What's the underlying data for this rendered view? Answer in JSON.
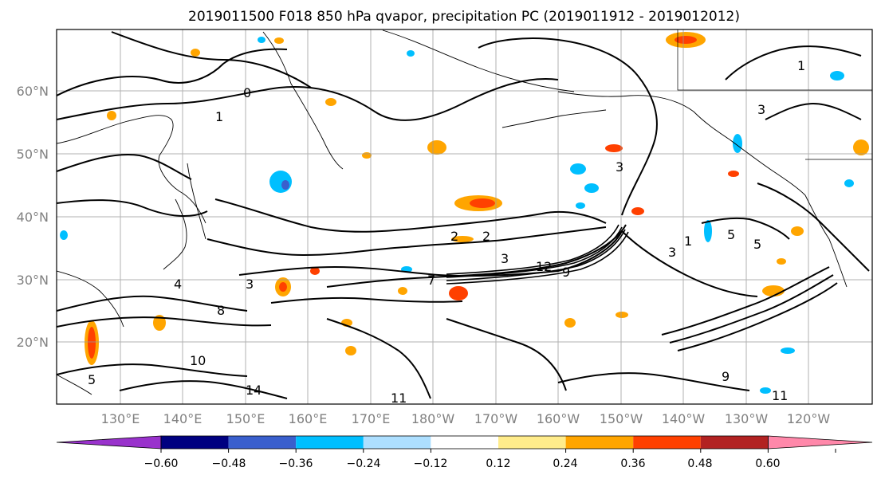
{
  "figure": {
    "title": "2019011500 F018 850 hPa qvapor, precipitation PC (2019011912 - 2019012012)"
  },
  "map": {
    "projection": "PlateCarree",
    "lon_range": [
      "~121°E",
      "~113°W"
    ],
    "lat_range": [
      "~10°N",
      "~70°N"
    ],
    "gridlines": true,
    "lat_labels": [
      "60°N",
      "50°N",
      "40°N",
      "30°N",
      "20°N"
    ],
    "lon_labels": [
      "130°E",
      "140°E",
      "150°E",
      "160°E",
      "170°E",
      "180°W",
      "170°W",
      "160°W",
      "150°W",
      "140°W",
      "130°W",
      "120°W"
    ],
    "contour_field": "850 hPa qvapor",
    "contour_labels": [
      "0",
      "1",
      "1",
      "2",
      "2",
      "3",
      "3",
      "3",
      "3",
      "4",
      "5",
      "5",
      "7",
      "9",
      "12",
      "8",
      "10",
      "11",
      "14",
      "9",
      "11",
      "5",
      "1",
      "3"
    ]
  },
  "colorbar": {
    "variable": "precipitation PC",
    "extend": "both",
    "tick_labels": [
      "−0.60",
      "−0.48",
      "−0.36",
      "−0.24",
      "−0.12",
      "0.12",
      "0.24",
      "0.36",
      "0.48",
      "0.60"
    ],
    "ticks": [
      -0.6,
      -0.48,
      -0.36,
      -0.24,
      -0.12,
      0.12,
      0.24,
      0.36,
      0.48,
      0.6
    ],
    "bins": [
      {
        "range": "< -0.60",
        "color": "#9932CC"
      },
      {
        "range": "-0.60 to -0.48",
        "color": "#000080"
      },
      {
        "range": "-0.48 to -0.36",
        "color": "#3A5FCD"
      },
      {
        "range": "-0.36 to -0.24",
        "color": "#00BFFF"
      },
      {
        "range": "-0.24 to -0.12",
        "color": "#ADDFFF"
      },
      {
        "range": "-0.12 to 0.12",
        "color": "#FFFFFF"
      },
      {
        "range": "0.12 to 0.24",
        "color": "#FFEC8B"
      },
      {
        "range": "0.24 to 0.36",
        "color": "#FFA500"
      },
      {
        "range": "0.36 to 0.48",
        "color": "#FF4000"
      },
      {
        "range": "0.48 to 0.60",
        "color": "#B22222"
      },
      {
        "range": "> 0.60",
        "color": "#FF88AA"
      }
    ]
  }
}
